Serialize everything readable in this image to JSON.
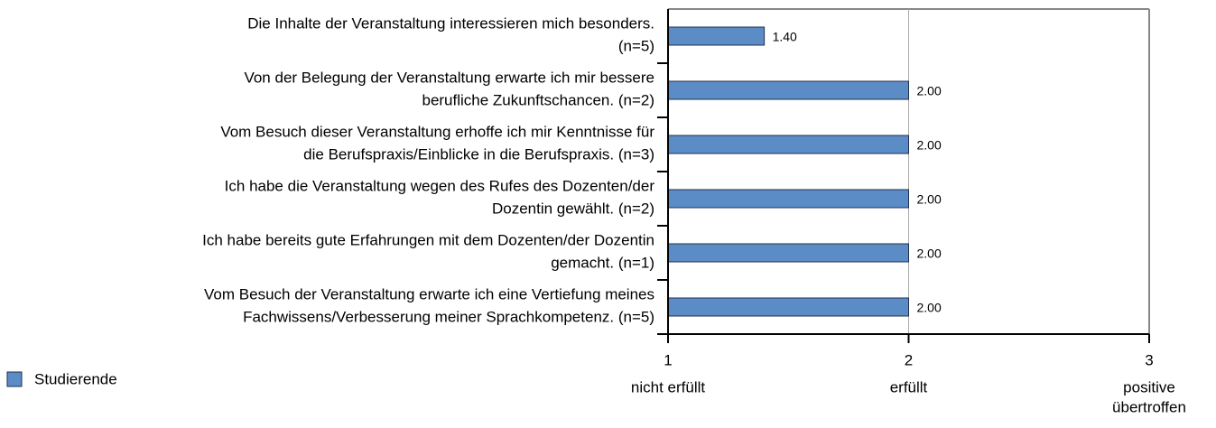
{
  "chart_data": {
    "type": "bar",
    "orientation": "horizontal",
    "categories": [
      [
        "Die Inhalte der Veranstaltung interessieren mich besonders.",
        "(n=5)"
      ],
      [
        "Von der Belegung der Veranstaltung erwarte ich mir bessere",
        "berufliche Zukunftschancen.    (n=2)"
      ],
      [
        "Vom Besuch dieser Veranstaltung erhoffe ich mir Kenntnisse für",
        "die Berufspraxis/Einblicke in die Berufspraxis.    (n=3)"
      ],
      [
        "Ich habe die Veranstaltung wegen des Rufes des Dozenten/der",
        "Dozentin gewählt.    (n=2)"
      ],
      [
        "Ich habe bereits gute Erfahrungen mit dem Dozenten/der Dozentin",
        "gemacht.    (n=1)"
      ],
      [
        "Vom Besuch der Veranstaltung erwarte ich eine Vertiefung meines",
        "Fachwissens/Verbesserung meiner Sprachkompetenz.    (n=5)"
      ]
    ],
    "series": [
      {
        "name": "Studierende",
        "color": "#5b8cc6",
        "values": [
          1.4,
          2,
          2,
          2,
          2,
          2
        ],
        "value_labels": [
          "1.40",
          "2.00",
          "2.00",
          "2.00",
          "2.00",
          "2.00"
        ]
      }
    ],
    "xlim": [
      1,
      3
    ],
    "xticks": [
      1,
      2,
      3
    ],
    "xtick_descriptions": [
      [
        "nicht erfüllt"
      ],
      [
        "erfüllt"
      ],
      [
        "positive",
        "übertroffen"
      ]
    ],
    "grid": true,
    "legend": "bottom-left"
  }
}
